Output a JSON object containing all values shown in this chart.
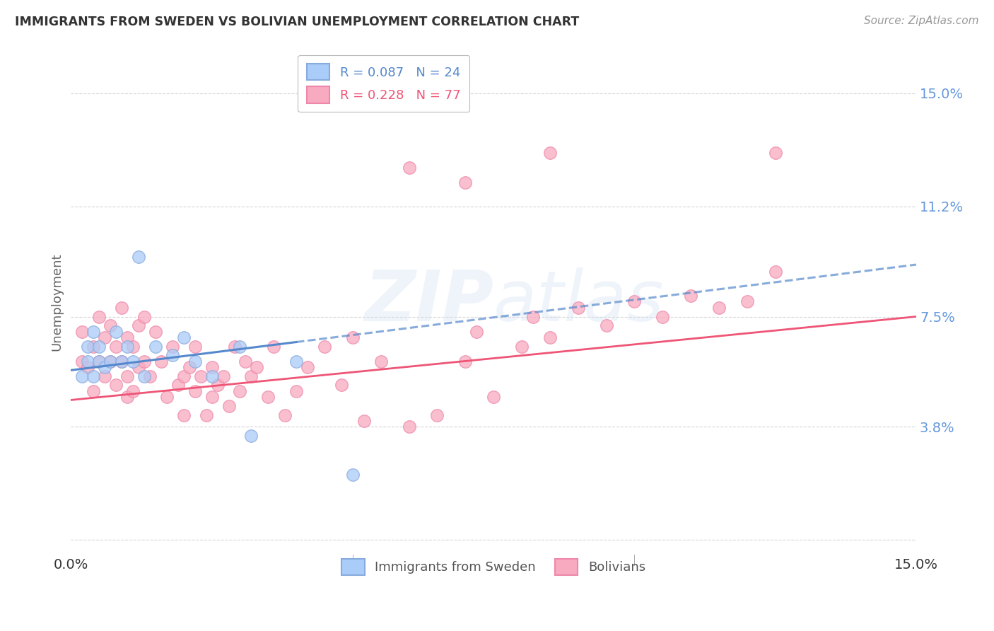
{
  "title": "IMMIGRANTS FROM SWEDEN VS BOLIVIAN UNEMPLOYMENT CORRELATION CHART",
  "source": "Source: ZipAtlas.com",
  "ylabel": "Unemployment",
  "y_ticks": [
    0.0,
    0.038,
    0.075,
    0.112,
    0.15
  ],
  "y_tick_labels": [
    "",
    "3.8%",
    "7.5%",
    "11.2%",
    "15.0%"
  ],
  "x_range": [
    0.0,
    0.15
  ],
  "y_range": [
    -0.005,
    0.165
  ],
  "color_sweden": "#aaccf8",
  "color_bolivia": "#f8aac0",
  "color_sweden_border": "#88aadd",
  "color_bolivia_border": "#ee88aa",
  "color_sweden_line": "#5588cc",
  "color_bolivia_line": "#ee5577",
  "sweden_points_x": [
    0.002,
    0.003,
    0.003,
    0.004,
    0.004,
    0.005,
    0.005,
    0.006,
    0.007,
    0.008,
    0.009,
    0.01,
    0.011,
    0.012,
    0.013,
    0.015,
    0.018,
    0.02,
    0.022,
    0.025,
    0.03,
    0.032,
    0.04,
    0.05
  ],
  "sweden_points_y": [
    0.055,
    0.06,
    0.065,
    0.055,
    0.07,
    0.06,
    0.065,
    0.058,
    0.06,
    0.07,
    0.06,
    0.065,
    0.06,
    0.095,
    0.055,
    0.065,
    0.062,
    0.068,
    0.06,
    0.055,
    0.065,
    0.035,
    0.06,
    0.022
  ],
  "bolivia_points_x": [
    0.002,
    0.002,
    0.003,
    0.004,
    0.004,
    0.005,
    0.005,
    0.006,
    0.006,
    0.007,
    0.007,
    0.008,
    0.008,
    0.009,
    0.009,
    0.01,
    0.01,
    0.01,
    0.011,
    0.011,
    0.012,
    0.012,
    0.013,
    0.013,
    0.014,
    0.015,
    0.016,
    0.017,
    0.018,
    0.019,
    0.02,
    0.02,
    0.021,
    0.022,
    0.022,
    0.023,
    0.024,
    0.025,
    0.025,
    0.026,
    0.027,
    0.028,
    0.029,
    0.03,
    0.031,
    0.032,
    0.033,
    0.035,
    0.036,
    0.038,
    0.04,
    0.042,
    0.045,
    0.048,
    0.05,
    0.052,
    0.055,
    0.06,
    0.065,
    0.07,
    0.072,
    0.075,
    0.08,
    0.082,
    0.085,
    0.09,
    0.095,
    0.1,
    0.105,
    0.11,
    0.115,
    0.12,
    0.125,
    0.125,
    0.06,
    0.07,
    0.085
  ],
  "bolivia_points_y": [
    0.06,
    0.07,
    0.058,
    0.05,
    0.065,
    0.06,
    0.075,
    0.055,
    0.068,
    0.06,
    0.072,
    0.052,
    0.065,
    0.06,
    0.078,
    0.055,
    0.068,
    0.048,
    0.05,
    0.065,
    0.058,
    0.072,
    0.06,
    0.075,
    0.055,
    0.07,
    0.06,
    0.048,
    0.065,
    0.052,
    0.055,
    0.042,
    0.058,
    0.05,
    0.065,
    0.055,
    0.042,
    0.048,
    0.058,
    0.052,
    0.055,
    0.045,
    0.065,
    0.05,
    0.06,
    0.055,
    0.058,
    0.048,
    0.065,
    0.042,
    0.05,
    0.058,
    0.065,
    0.052,
    0.068,
    0.04,
    0.06,
    0.038,
    0.042,
    0.06,
    0.07,
    0.048,
    0.065,
    0.075,
    0.068,
    0.078,
    0.072,
    0.08,
    0.075,
    0.082,
    0.078,
    0.08,
    0.09,
    0.13,
    0.125,
    0.12,
    0.13
  ],
  "sweden_line_x": [
    0.0,
    0.055
  ],
  "sweden_line_y": [
    0.057,
    0.07
  ],
  "bolivia_line_x": [
    0.0,
    0.15
  ],
  "bolivia_line_y": [
    0.047,
    0.075
  ],
  "watermark_line1": "ZIP",
  "watermark_line2": "atlas",
  "background_color": "#ffffff",
  "grid_color": "#cccccc",
  "tick_color": "#6699dd",
  "legend_sweden_text": "R = 0.087   N = 24",
  "legend_bolivia_text": "R = 0.228   N = 77"
}
